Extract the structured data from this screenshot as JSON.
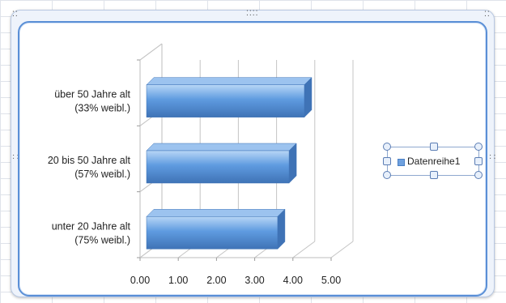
{
  "chart_data": {
    "type": "bar",
    "orientation": "horizontal",
    "style": "3d-clustered",
    "categories": [
      [
        "unter 20 Jahre alt",
        "(75% weibl.)"
      ],
      [
        "20 bis 50 Jahre alt",
        "(57% weibl.)"
      ],
      [
        "über 50 Jahre alt",
        "(33% weibl.)"
      ]
    ],
    "series": [
      {
        "name": "Datenreihe1",
        "values": [
          3.6,
          3.9,
          4.3
        ]
      }
    ],
    "xlim": [
      0,
      5
    ],
    "x_ticks": [
      "0.00",
      "1.00",
      "2.00",
      "3.00",
      "4.00",
      "5.00"
    ],
    "xlabel": "",
    "ylabel": "",
    "title": "",
    "grid": true,
    "legend_position": "right",
    "colors": {
      "bar_front": "#5f9be0",
      "bar_top": "#9cc3ef",
      "bar_side": "#3f73b6",
      "bar_highlight": "#b8d6f6",
      "gridline": "#c4c4c4"
    }
  },
  "legend": {
    "label": "Datenreihe1",
    "selected": true
  }
}
